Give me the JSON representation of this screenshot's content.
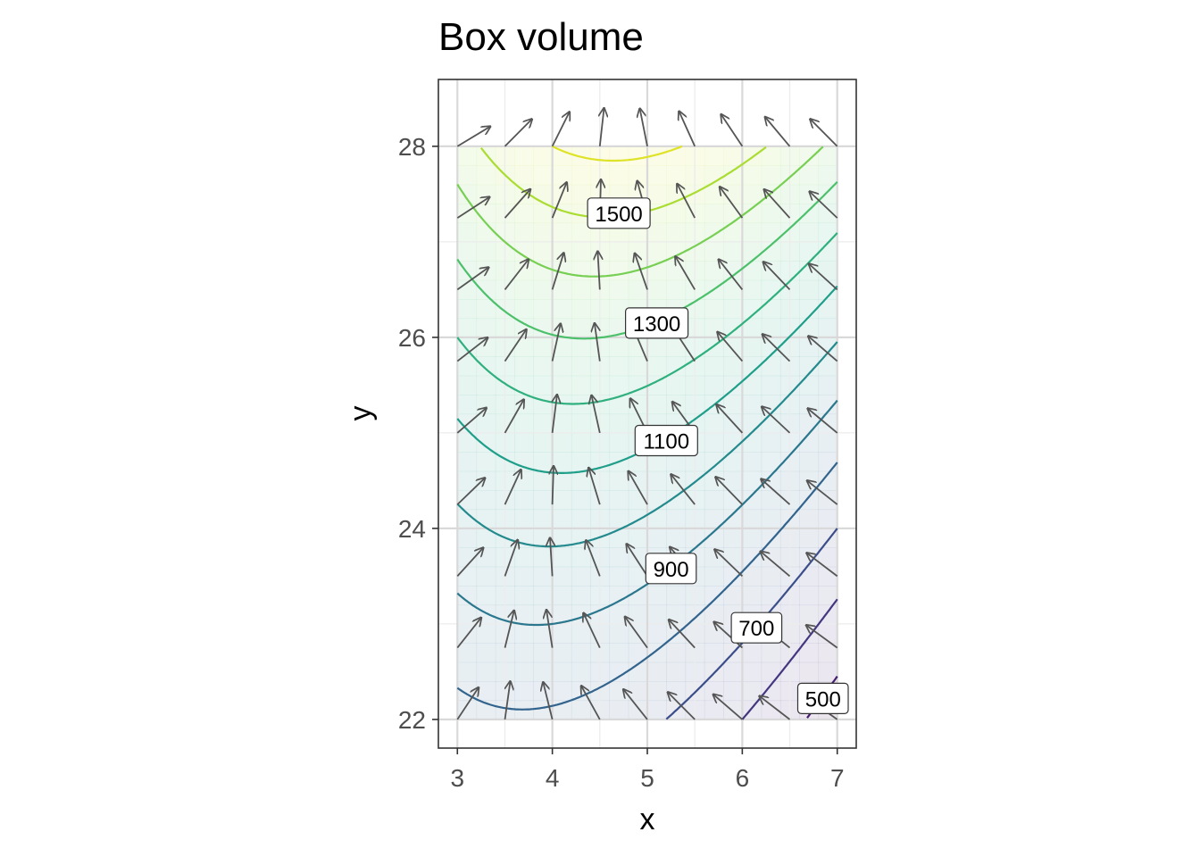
{
  "chart_data": {
    "type": "contour",
    "title": "Box volume",
    "xlabel": "x",
    "ylabel": "y",
    "xlim": [
      2.8,
      7.2
    ],
    "ylim": [
      21.7,
      28.7
    ],
    "x_ticks": [
      "3",
      "4",
      "5",
      "6",
      "7"
    ],
    "y_ticks": [
      "22",
      "24",
      "26",
      "28"
    ],
    "grid": true,
    "field_domain": {
      "x": [
        3,
        7
      ],
      "y": [
        22,
        28
      ]
    },
    "contour_levels": [
      500,
      600,
      700,
      800,
      900,
      1000,
      1100,
      1200,
      1300,
      1400,
      1500,
      1600
    ],
    "contour_labels": [
      {
        "text": "1500",
        "x": 4.7,
        "y": 27.3
      },
      {
        "text": "1300",
        "x": 5.1,
        "y": 26.15
      },
      {
        "text": "1100",
        "x": 5.2,
        "y": 24.92
      },
      {
        "text": "900",
        "x": 5.25,
        "y": 23.58
      },
      {
        "text": "700",
        "x": 6.15,
        "y": 22.96
      },
      {
        "text": "500",
        "x": 6.85,
        "y": 22.22
      }
    ],
    "vector_field": "gradient arrows on a 9 x 9 grid",
    "colormap": "viridis",
    "colors": {
      "low": "#440154",
      "mid": "#21908c",
      "high": "#fde725",
      "arrow": "#555555",
      "grid_major": "#d9d9d9",
      "grid_minor": "#ececec",
      "panel_border": "#333333"
    }
  }
}
